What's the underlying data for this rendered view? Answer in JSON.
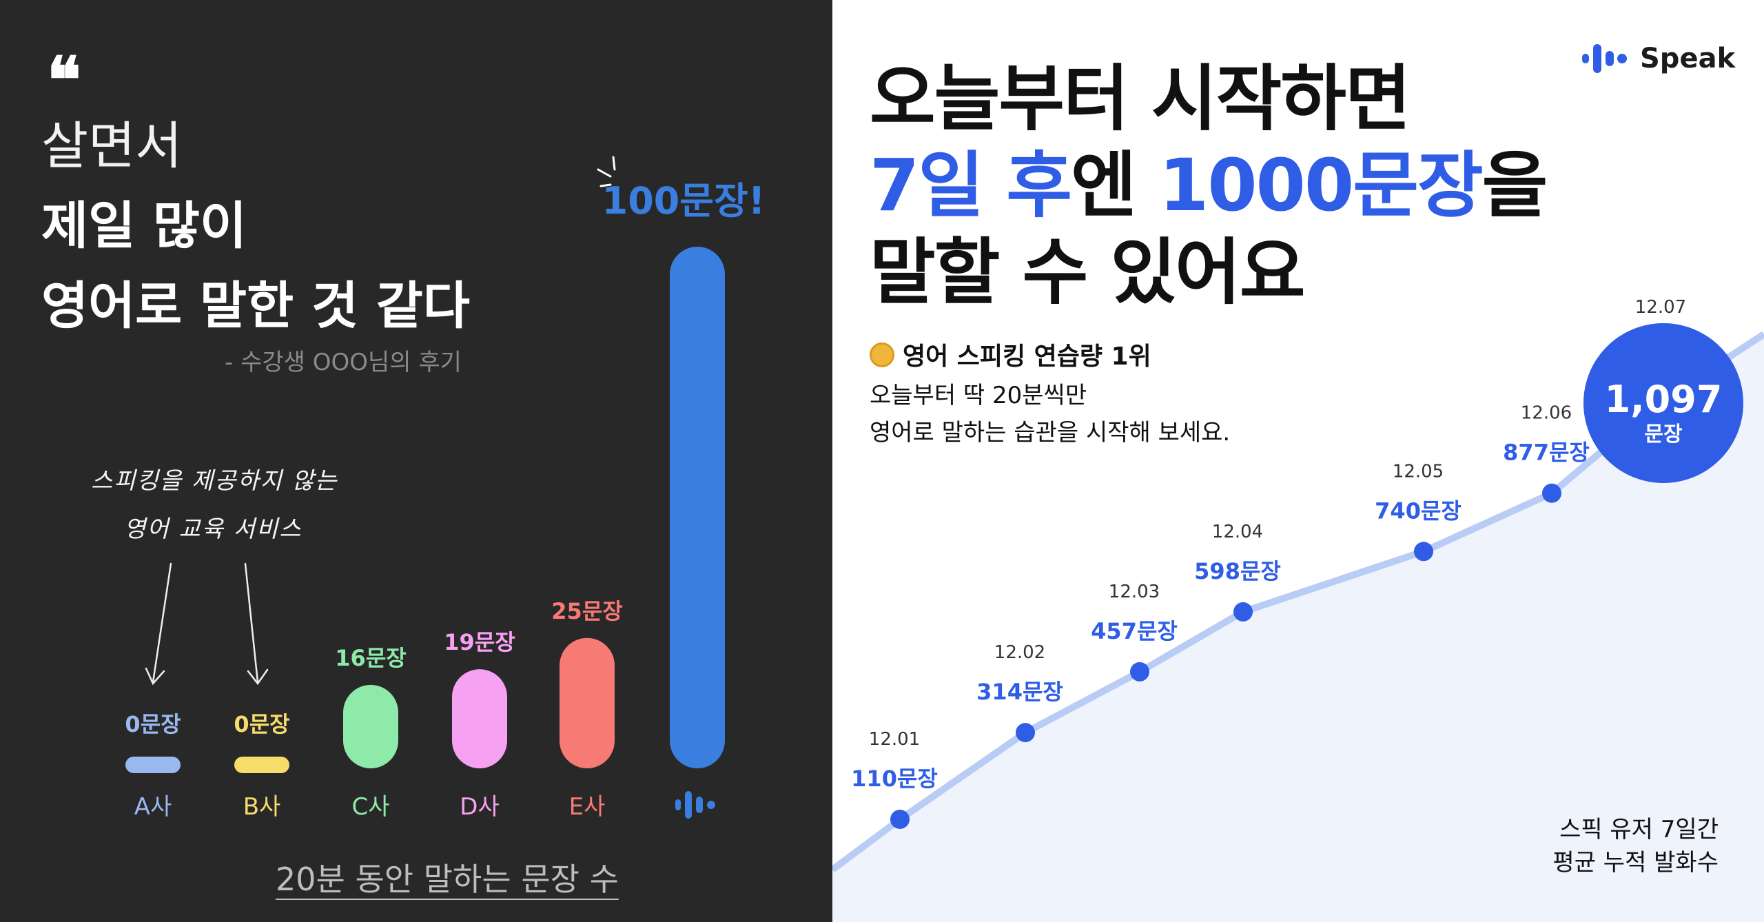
{
  "left": {
    "quote_mark": "❝",
    "quote_line1": "살면서",
    "quote_line2": "제일 많이",
    "quote_line3": "영어로 말한 것 같다",
    "attribution": "- 수강생 OOO님의 후기",
    "handwritten_line1": "스피킹을 제공하지 않는",
    "handwritten_line2": "영어 교육 서비스",
    "bottom_caption": "20분 동안 말하는 문장 수"
  },
  "right": {
    "headline_line1": "오늘부터 시작하면",
    "headline_line2_part1": "7일 후",
    "headline_line2_part2": "엔 ",
    "headline_line2_part3": "1000문장",
    "headline_line2_part4": "을",
    "headline_line3": "말할 수 있어요",
    "logo_text": "Speak",
    "rank_text": "영어 스피킹 연습량 1위",
    "sub_line1": "오늘부터 딱 20분씩만",
    "sub_line2": "영어로 말하는 습관을 시작해 보세요.",
    "footnote_line1": "스픽 유저 7일간",
    "footnote_line2": "평균 누적 발화수"
  },
  "colors": {
    "left_bg": "#282828",
    "accent_blue": "#2f5de6",
    "bar_blue": "#3a7ee0",
    "light_area": "#eef3fc",
    "line_light": "#b8ccf5"
  },
  "chart_data": [
    {
      "type": "bar",
      "categories": [
        "A사",
        "B사",
        "C사",
        "D사",
        "E사",
        "Speak"
      ],
      "values": [
        0,
        0,
        16,
        19,
        25,
        100
      ],
      "value_labels": [
        "0문장",
        "0문장",
        "16문장",
        "19문장",
        "25문장",
        "100문장!"
      ],
      "colors": [
        "#9bb7f0",
        "#f6dc6a",
        "#8eeaa8",
        "#f7a1f3",
        "#f87a74",
        "#3a7ee0"
      ],
      "title": "",
      "xlabel": "20분 동안 말하는 문장 수",
      "ylabel": "",
      "ylim": [
        0,
        100
      ],
      "last_category_shown_as": "speak-logo-icon"
    },
    {
      "type": "line",
      "x": [
        "12.01",
        "12.02",
        "12.03",
        "12.04",
        "12.05",
        "12.06",
        "12.07"
      ],
      "values": [
        110,
        314,
        457,
        598,
        740,
        877,
        1097
      ],
      "value_labels": [
        "110문장",
        "314문장",
        "457문장",
        "598문장",
        "740문장",
        "877문장",
        "1,097"
      ],
      "highlight_label_unit": "문장",
      "title": "",
      "xlabel": "",
      "ylabel": "",
      "ylim": [
        0,
        1200
      ],
      "area_fill": true,
      "grid": false
    }
  ]
}
